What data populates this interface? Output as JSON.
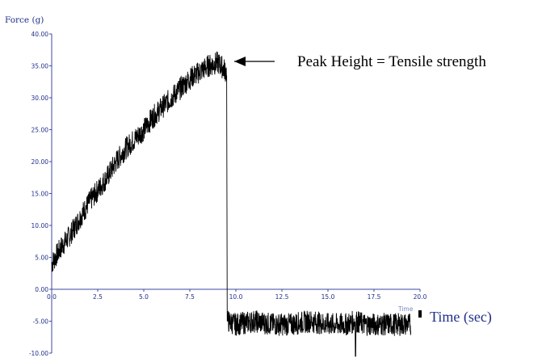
{
  "chart_data": {
    "type": "line",
    "ylabel": "Force   (g)",
    "xlabel": "Time (sec)",
    "faint_axis_text": "Time",
    "annotation": "Peak Height = Tensile strength",
    "xlim": [
      0,
      20
    ],
    "ylim": [
      -10,
      40
    ],
    "x_ticks": [
      "0.0",
      "2.5",
      "5.0",
      "7.5",
      "10.0",
      "12.5",
      "15.0",
      "17.5",
      "20.0"
    ],
    "y_ticks": [
      "40.00",
      "35.00",
      "30.00",
      "25.00",
      "20.00",
      "15.00",
      "10.00",
      "5.00",
      "0.00",
      "-5.00",
      "-10.00"
    ],
    "series": [
      {
        "color": "#000000",
        "x": [
          0.0,
          0.5,
          1.0,
          1.5,
          2.0,
          2.5,
          3.0,
          3.5,
          4.0,
          4.5,
          5.0,
          5.5,
          6.0,
          6.5,
          7.0,
          7.5,
          8.0,
          8.5,
          9.0,
          9.2,
          9.5,
          9.55,
          10.0,
          11.0,
          12.0,
          13.0,
          14.0,
          15.0,
          16.0,
          16.5,
          17.0,
          18.0,
          19.0,
          19.5
        ],
        "y": [
          4.0,
          6.5,
          8.5,
          11.0,
          13.5,
          15.5,
          17.5,
          20.0,
          22.0,
          23.5,
          25.0,
          27.0,
          28.5,
          30.0,
          31.5,
          33.0,
          34.0,
          35.0,
          35.5,
          35.0,
          34.0,
          -5.0,
          -5.5,
          -5.0,
          -5.5,
          -5.5,
          -5.0,
          -5.5,
          -5.5,
          -5.0,
          -5.5,
          -5.5,
          -5.5,
          -5.5
        ]
      }
    ],
    "peak": {
      "x": 9.4,
      "y": 35.5
    },
    "noise_amplitude": 1.8,
    "grid": false,
    "legend": "none"
  }
}
